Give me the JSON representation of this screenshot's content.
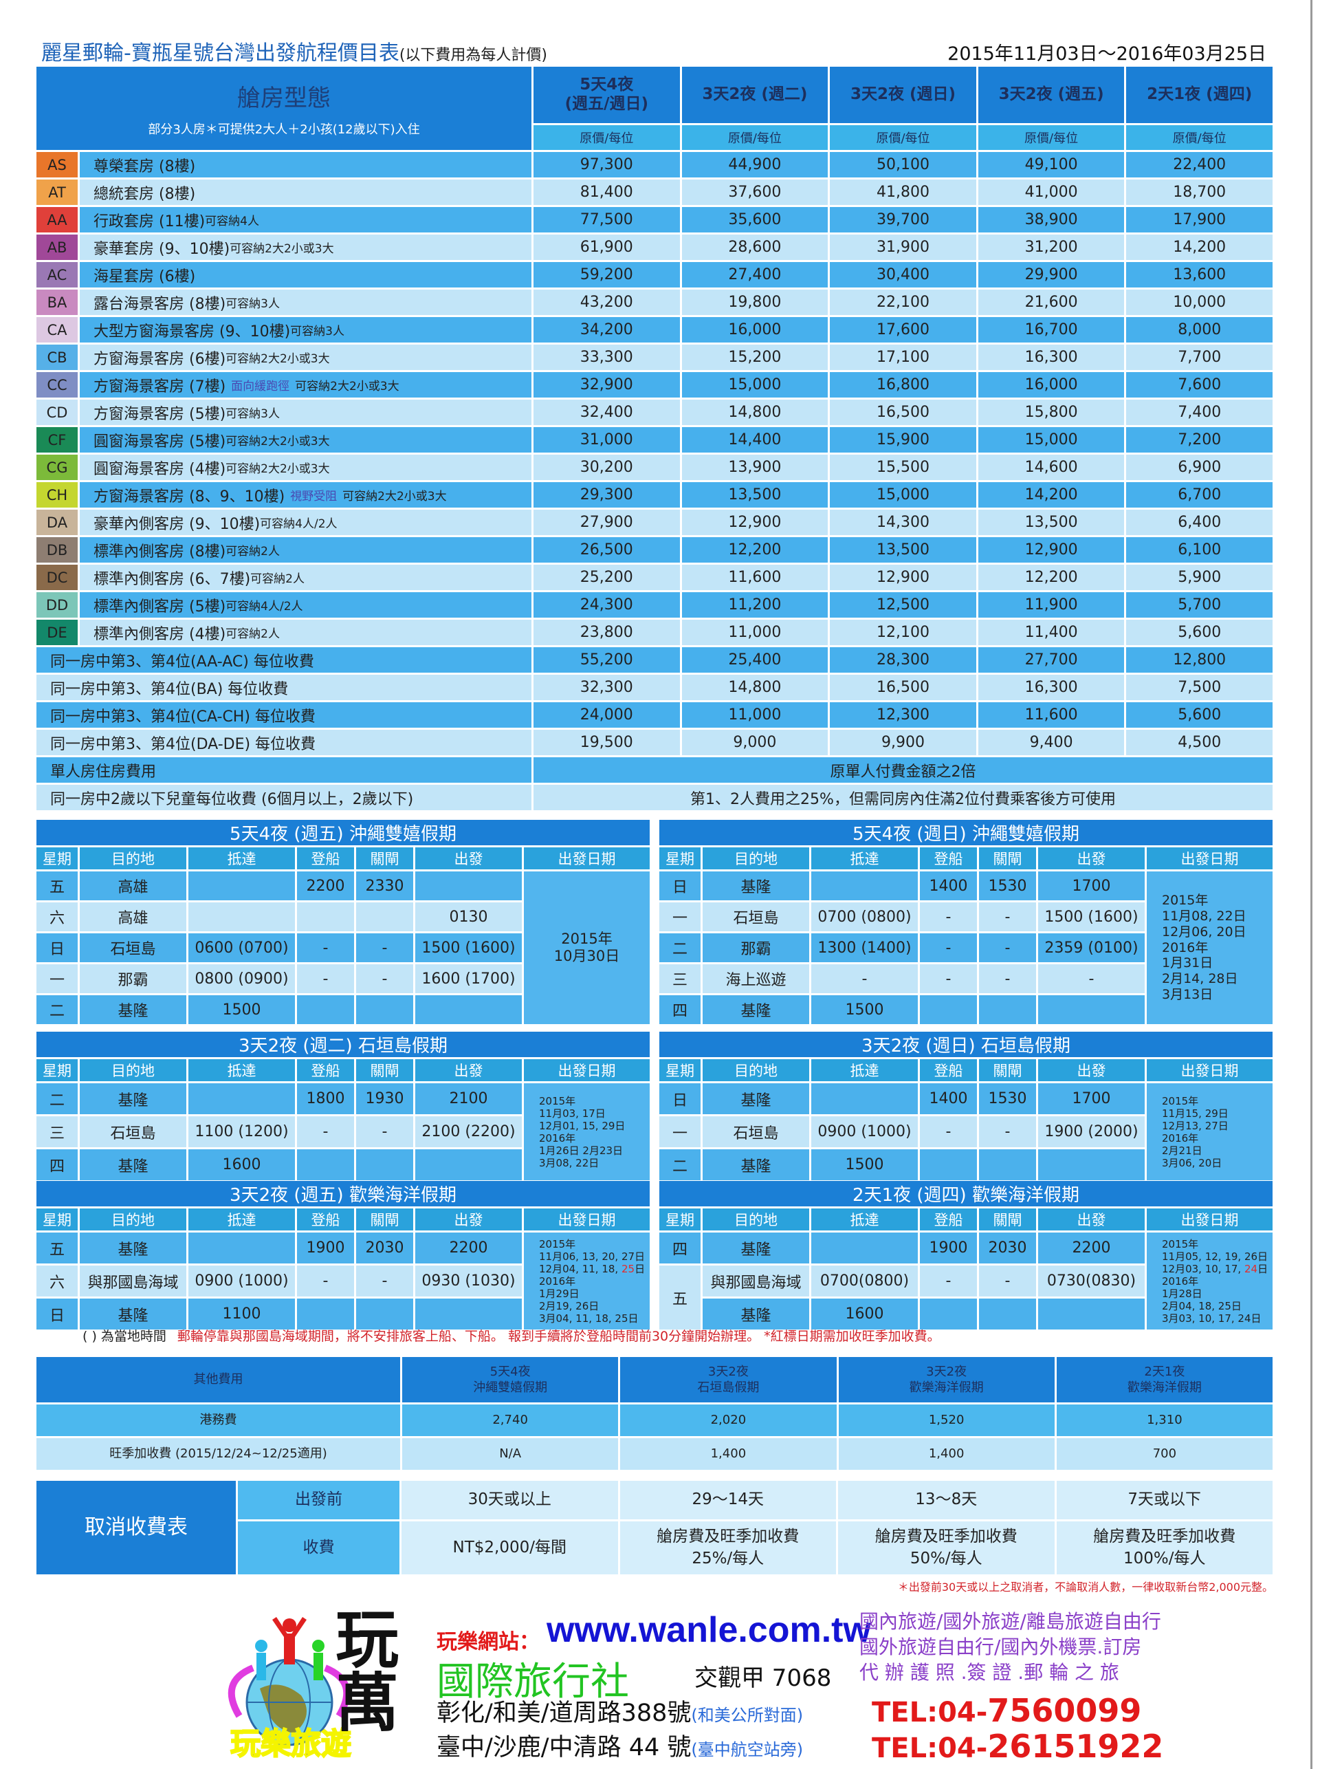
{
  "header": {
    "title": "麗星郵輪-寶瓶星號台灣出發航程價目表",
    "title_sub": "(以下費用為每人計價)",
    "period": "2015年11月03日～2016年03月25日"
  },
  "main_table": {
    "type_header": "艙房型態",
    "type_note": "部分3人房＊可提供2大人＋2小孩(12歲以下)入住",
    "columns": [
      {
        "label": "5天4夜\n(週五/週日)",
        "sub": "原價/每位"
      },
      {
        "label": "3天2夜 (週二)",
        "sub": "原價/每位"
      },
      {
        "label": "3天2夜 (週日)",
        "sub": "原價/每位"
      },
      {
        "label": "3天2夜 (週五)",
        "sub": "原價/每位"
      },
      {
        "label": "2天1夜 (週四)",
        "sub": "原價/每位"
      }
    ],
    "rows": [
      {
        "code": "AS",
        "color": "#e8762a",
        "name": "尊榮套房 (8樓)",
        "note": "",
        "cap": "",
        "prices": [
          "97,300",
          "44,900",
          "50,100",
          "49,100",
          "22,400"
        ]
      },
      {
        "code": "AT",
        "color": "#f0a24a",
        "name": "總統套房 (8樓)",
        "note": "",
        "cap": "",
        "prices": [
          "81,400",
          "37,600",
          "41,800",
          "41,000",
          "18,700"
        ]
      },
      {
        "code": "AA",
        "color": "#e0403a",
        "name": "行政套房 (11樓)",
        "note": "",
        "cap": "可容納4人",
        "prices": [
          "77,500",
          "35,600",
          "39,700",
          "38,900",
          "17,900"
        ]
      },
      {
        "code": "AB",
        "color": "#a04898",
        "name": "豪華套房 (9、10樓)",
        "note": "",
        "cap": "可容納2大2小或3大",
        "prices": [
          "61,900",
          "28,600",
          "31,900",
          "31,200",
          "14,200"
        ]
      },
      {
        "code": "AC",
        "color": "#9a78b4",
        "name": "海星套房 (6樓)",
        "note": "",
        "cap": "",
        "prices": [
          "59,200",
          "27,400",
          "30,400",
          "29,900",
          "13,600"
        ]
      },
      {
        "code": "BA",
        "color": "#c98ac0",
        "name": "露台海景客房 (8樓)",
        "note": "",
        "cap": "可容納3人",
        "prices": [
          "43,200",
          "19,800",
          "22,100",
          "21,600",
          "10,000"
        ]
      },
      {
        "code": "CA",
        "color": "#ddc8e2",
        "name": "大型方窗海景客房 (9、10樓)",
        "note": "",
        "cap": "可容納3人",
        "prices": [
          "34,200",
          "16,000",
          "17,600",
          "16,700",
          "8,000"
        ]
      },
      {
        "code": "CB",
        "color": "#56b0e8",
        "name": "方窗海景客房 (6樓)",
        "note": "",
        "cap": "可容納2大2小或3大",
        "prices": [
          "33,300",
          "15,200",
          "17,100",
          "16,300",
          "7,700"
        ]
      },
      {
        "code": "CC",
        "color": "#7f8ec4",
        "name": "方窗海景客房 (7樓)",
        "note": "面向緩跑徑",
        "cap": "可容納2大2小或3大",
        "prices": [
          "32,900",
          "15,000",
          "16,800",
          "16,000",
          "7,600"
        ]
      },
      {
        "code": "CD",
        "color": "#c7e4f7",
        "name": "方窗海景客房 (5樓)",
        "note": "",
        "cap": "可容納3人",
        "prices": [
          "32,400",
          "14,800",
          "16,500",
          "15,800",
          "7,400"
        ]
      },
      {
        "code": "CF",
        "color": "#1a8a56",
        "name": "圓窗海景客房 (5樓)",
        "note": "",
        "cap": "可容納2大2小或3大",
        "prices": [
          "31,000",
          "14,400",
          "15,900",
          "15,000",
          "7,200"
        ]
      },
      {
        "code": "CG",
        "color": "#7cba3a",
        "name": "圓窗海景客房 (4樓)",
        "note": "",
        "cap": "可容納2大2小或3大",
        "prices": [
          "30,200",
          "13,900",
          "15,500",
          "14,600",
          "6,900"
        ]
      },
      {
        "code": "CH",
        "color": "#c4d630",
        "name": "方窗海景客房 (8、9、10樓)",
        "note": "視野受阻",
        "cap": "可容納2大2小或3大",
        "prices": [
          "29,300",
          "13,500",
          "15,000",
          "14,200",
          "6,700"
        ]
      },
      {
        "code": "DA",
        "color": "#c8b49a",
        "name": "豪華內側客房 (9、10樓)",
        "note": "",
        "cap": "可容納4人/2人",
        "prices": [
          "27,900",
          "12,900",
          "14,300",
          "13,500",
          "6,400"
        ]
      },
      {
        "code": "DB",
        "color": "#8e7e72",
        "name": "標準內側客房 (8樓)",
        "note": "",
        "cap": "可容納2人",
        "prices": [
          "26,500",
          "12,200",
          "13,500",
          "12,900",
          "6,100"
        ]
      },
      {
        "code": "DC",
        "color": "#8a6a4a",
        "name": "標準內側客房 (6、7樓)",
        "note": "",
        "cap": "可容納2人",
        "prices": [
          "25,200",
          "11,600",
          "12,900",
          "12,200",
          "5,900"
        ]
      },
      {
        "code": "DD",
        "color": "#7cc6b8",
        "name": "標準內側客房 (5樓)",
        "note": "",
        "cap": "可容納4人/2人",
        "prices": [
          "24,300",
          "11,200",
          "12,500",
          "11,900",
          "5,700"
        ]
      },
      {
        "code": "DE",
        "color": "#13886a",
        "name": "標準內側客房 (4樓)",
        "note": "",
        "cap": "可容納2人",
        "prices": [
          "23,800",
          "11,000",
          "12,100",
          "11,400",
          "5,600"
        ]
      },
      {
        "label": "同一房中第3、第4位(AA-AC) 每位收費",
        "prices": [
          "55,200",
          "25,400",
          "28,300",
          "27,700",
          "12,800"
        ]
      },
      {
        "label": "同一房中第3、第4位(BA) 每位收費",
        "prices": [
          "32,300",
          "14,800",
          "16,500",
          "16,300",
          "7,500"
        ]
      },
      {
        "label": "同一房中第3、第4位(CA-CH) 每位收費",
        "prices": [
          "24,000",
          "11,000",
          "12,300",
          "11,600",
          "5,600"
        ]
      },
      {
        "label": "同一房中第3、第4位(DA-DE) 每位收費",
        "prices": [
          "19,500",
          "9,000",
          "9,900",
          "9,400",
          "4,500"
        ]
      },
      {
        "label": "單人房住房費用",
        "merged": "原單人付費金額之2倍"
      },
      {
        "label": "同一房中2歲以下兒童每位收費 (6個月以上，2歲以下)",
        "merged": "第1、2人費用之25%，但需同房內住滿2位付費乘客後方可使用"
      }
    ]
  },
  "itinerary_headers": [
    "星期",
    "目的地",
    "抵達",
    "登船",
    "關閘",
    "出發",
    "出發日期"
  ],
  "itineraries": [
    {
      "title": "5天4夜 (週五) 沖繩雙嬉假期",
      "date_style": "big",
      "rows": [
        {
          "day": "五",
          "dest": "高雄",
          "arrive": "",
          "board": "2200",
          "gate": "2330",
          "depart": ""
        },
        {
          "day": "六",
          "dest": "高雄",
          "arrive": "",
          "board": "",
          "gate": "",
          "depart": "0130"
        },
        {
          "day": "日",
          "dest": "石垣島",
          "arrive": "0600 (0700)",
          "board": "-",
          "gate": "-",
          "depart": "1500 (1600)"
        },
        {
          "day": "一",
          "dest": "那霸",
          "arrive": "0800 (0900)",
          "board": "-",
          "gate": "-",
          "depart": "1600 (1700)"
        },
        {
          "day": "二",
          "dest": "基隆",
          "arrive": "1500",
          "board": "",
          "gate": "",
          "depart": ""
        }
      ],
      "dates": [
        [
          {
            "t": "2015年"
          }
        ],
        [
          {
            "t": "10月30日"
          }
        ]
      ]
    },
    {
      "title": "5天4夜 (週日) 沖繩雙嬉假期",
      "date_style": "med",
      "rows": [
        {
          "day": "日",
          "dest": "基隆",
          "arrive": "",
          "board": "1400",
          "gate": "1530",
          "depart": "1700"
        },
        {
          "day": "一",
          "dest": "石垣島",
          "arrive": "0700 (0800)",
          "board": "-",
          "gate": "-",
          "depart": "1500 (1600)"
        },
        {
          "day": "二",
          "dest": "那霸",
          "arrive": "1300 (1400)",
          "board": "-",
          "gate": "-",
          "depart": "2359 (0100)"
        },
        {
          "day": "三",
          "dest": "海上巡遊",
          "arrive": "-",
          "board": "-",
          "gate": "-",
          "depart": "-"
        },
        {
          "day": "四",
          "dest": "基隆",
          "arrive": "1500",
          "board": "",
          "gate": "",
          "depart": ""
        }
      ],
      "dates": [
        [
          {
            "t": "2015年"
          }
        ],
        [
          {
            "t": "11月08, 22日"
          }
        ],
        [
          {
            "t": "12月06, 20日"
          }
        ],
        [
          {
            "t": "2016年"
          }
        ],
        [
          {
            "t": "1月31日"
          }
        ],
        [
          {
            "t": "2月14, 28日"
          }
        ],
        [
          {
            "t": "3月13日"
          }
        ]
      ]
    },
    {
      "title": "3天2夜 (週二) 石垣島假期",
      "date_style": "small",
      "rows": [
        {
          "day": "二",
          "dest": "基隆",
          "arrive": "",
          "board": "1800",
          "gate": "1930",
          "depart": "2100"
        },
        {
          "day": "三",
          "dest": "石垣島",
          "arrive": "1100 (1200)",
          "board": "-",
          "gate": "-",
          "depart": "2100 (2200)"
        },
        {
          "day": "四",
          "dest": "基隆",
          "arrive": "1600",
          "board": "",
          "gate": "",
          "depart": ""
        }
      ],
      "dates": [
        [
          {
            "t": "2015年"
          }
        ],
        [
          {
            "t": "11月03, 17日"
          }
        ],
        [
          {
            "t": "12月01, 15, 29日"
          }
        ],
        [
          {
            "t": "2016年"
          }
        ],
        [
          {
            "t": "1月26日  2月23日"
          }
        ],
        [
          {
            "t": "3月08, 22日"
          }
        ]
      ]
    },
    {
      "title": "3天2夜 (週日) 石垣島假期",
      "date_style": "small",
      "rows": [
        {
          "day": "日",
          "dest": "基隆",
          "arrive": "",
          "board": "1400",
          "gate": "1530",
          "depart": "1700"
        },
        {
          "day": "一",
          "dest": "石垣島",
          "arrive": "0900 (1000)",
          "board": "-",
          "gate": "-",
          "depart": "1900 (2000)"
        },
        {
          "day": "二",
          "dest": "基隆",
          "arrive": "1500",
          "board": "",
          "gate": "",
          "depart": ""
        }
      ],
      "dates": [
        [
          {
            "t": "2015年"
          }
        ],
        [
          {
            "t": "11月15, 29日"
          }
        ],
        [
          {
            "t": "12月13, 27日"
          }
        ],
        [
          {
            "t": "2016年"
          }
        ],
        [
          {
            "t": "2月21日"
          }
        ],
        [
          {
            "t": "3月06, 20日"
          }
        ]
      ]
    },
    {
      "title": "3天2夜 (週五) 歡樂海洋假期",
      "date_style": "small",
      "rows": [
        {
          "day": "五",
          "dest": "基隆",
          "arrive": "",
          "board": "1900",
          "gate": "2030",
          "depart": "2200"
        },
        {
          "day": "六",
          "dest": "與那國島海域",
          "arrive": "0900 (1000)",
          "board": "-",
          "gate": "-",
          "depart": "0930 (1030)"
        },
        {
          "day": "日",
          "dest": "基隆",
          "arrive": "1100",
          "board": "",
          "gate": "",
          "depart": ""
        }
      ],
      "dates": [
        [
          {
            "t": "2015年"
          }
        ],
        [
          {
            "t": "11月06, 13, 20, 27日"
          }
        ],
        [
          {
            "t": "12月04, 11, 18, "
          },
          {
            "t": "25",
            "red": true
          },
          {
            "t": "日"
          }
        ],
        [
          {
            "t": "2016年"
          }
        ],
        [
          {
            "t": "1月29日"
          }
        ],
        [
          {
            "t": "2月19, 26日"
          }
        ],
        [
          {
            "t": "3月04, 11, 18, 25日"
          }
        ]
      ]
    },
    {
      "title": "2天1夜 (週四) 歡樂海洋假期",
      "date_style": "small",
      "rows": [
        {
          "day": "四",
          "dest": "基隆",
          "arrive": "",
          "board": "1900",
          "gate": "2030",
          "depart": "2200"
        },
        {
          "day": "五",
          "dest": "與那國島海域",
          "arrive": "0700(0800)",
          "board": "-",
          "gate": "-",
          "depart": "0730(0830)"
        },
        {
          "day": null,
          "dest": "基隆",
          "arrive": "1600",
          "board": "",
          "gate": "",
          "depart": ""
        }
      ],
      "dates": [
        [
          {
            "t": "2015年"
          }
        ],
        [
          {
            "t": "11月05, 12, 19, 26日"
          }
        ],
        [
          {
            "t": "12月03, 10, 17, "
          },
          {
            "t": "24",
            "red": true
          },
          {
            "t": "日"
          }
        ],
        [
          {
            "t": "2016年"
          }
        ],
        [
          {
            "t": "1月28日"
          }
        ],
        [
          {
            "t": "2月04, 18, 25日"
          }
        ],
        [
          {
            "t": "3月03, 10, 17, 24日"
          }
        ]
      ]
    }
  ],
  "notes": {
    "local_time": "(  ) 為當地時間",
    "red": "郵輪停靠與那國島海域期間，將不安排旅客上船、下船。 報到手續將於登船時間前30分鐘開始辦理。 *紅標日期需加收旺季加收費。"
  },
  "other_fees": {
    "label": "其他費用",
    "columns": [
      {
        "line1": "5天4夜",
        "line2": "沖繩雙嬉假期"
      },
      {
        "line1": "3天2夜",
        "line2": "石垣島假期"
      },
      {
        "line1": "3天2夜",
        "line2": "歡樂海洋假期"
      },
      {
        "line1": "2天1夜",
        "line2": "歡樂海洋假期"
      }
    ],
    "rows": [
      {
        "label": "港務費",
        "values": [
          "2,740",
          "2,020",
          "1,520",
          "1,310"
        ]
      },
      {
        "label": "旺季加收費 (2015/12/24~12/25適用)",
        "values": [
          "N/A",
          "1,400",
          "1,400",
          "700"
        ]
      }
    ]
  },
  "cancellation": {
    "title": "取消收費表",
    "before_label": "出發前",
    "fee_label": "收費",
    "periods": [
      "30天或以上",
      "29～14天",
      "13～8天",
      "7天或以下"
    ],
    "fees": [
      {
        "line1": "NT$2,000/每間",
        "line2": ""
      },
      {
        "line1": "艙房費及旺季加收費",
        "line2": "25%/每人"
      },
      {
        "line1": "艙房費及旺季加收費",
        "line2": "50%/每人"
      },
      {
        "line1": "艙房費及旺季加收費",
        "line2": "100%/每人"
      }
    ],
    "note": "＊出發前30天或以上之取消者，不論取消人數，一律收取新台幣2,000元整。"
  },
  "footer": {
    "logo_text": "玩樂旅遊",
    "brand": "玩萬",
    "site_label": "玩樂網站：",
    "site_url": "www.wanle.com.tw",
    "agency": "國際旅行社",
    "license": "交觀甲 7068",
    "address1": "彰化/和美/道周路388號",
    "address1_note": "(和美公所對面)",
    "tel1_prefix": "TEL:04-",
    "tel1_number": "7560099",
    "address2": "臺中/沙鹿/中清路 44 號",
    "address2_note": "(臺中航空站旁)",
    "tel2_prefix": "TEL:04-",
    "tel2_number": "26151922",
    "services": [
      "國內旅遊/國外旅遊/離島旅遊自由行",
      "國外旅遊自由行/國內外機票.訂房",
      "代 辦 護 照 .簽 證 .郵 輪 之 旅"
    ]
  }
}
